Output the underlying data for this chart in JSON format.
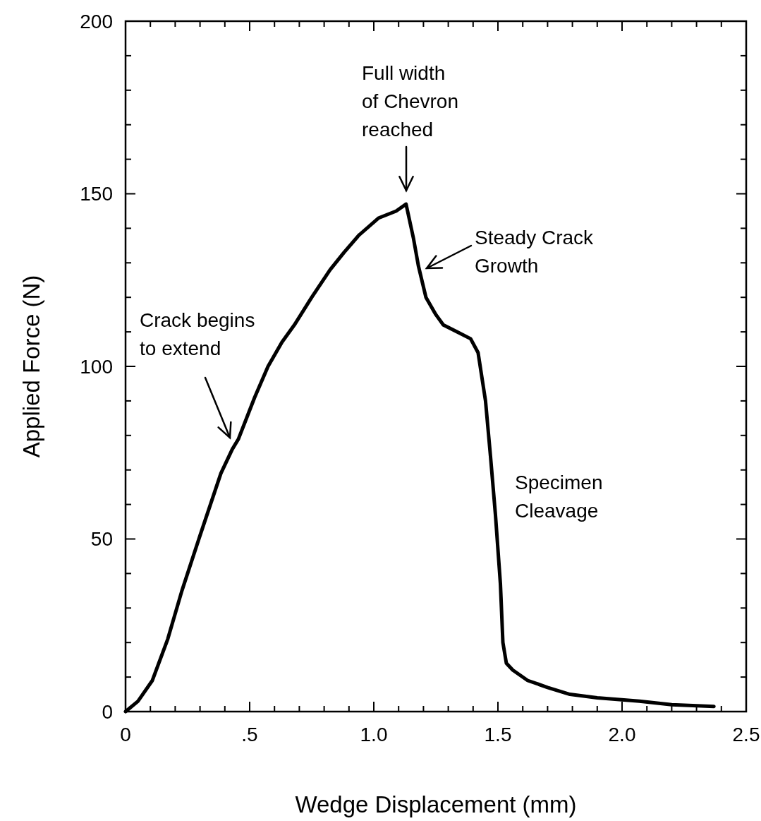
{
  "chart_data": {
    "type": "line",
    "xlabel": "Wedge Displacement (mm)",
    "ylabel": "Applied Force  (N)",
    "xlim": [
      0,
      2.5
    ],
    "ylim": [
      0,
      200
    ],
    "xticks": [
      {
        "value": 0,
        "label": "0"
      },
      {
        "value": 0.1,
        "label": null
      },
      {
        "value": 0.2,
        "label": null
      },
      {
        "value": 0.3,
        "label": null
      },
      {
        "value": 0.4,
        "label": null
      },
      {
        "value": 0.5,
        "label": ".5"
      },
      {
        "value": 0.6,
        "label": null
      },
      {
        "value": 0.7,
        "label": null
      },
      {
        "value": 0.8,
        "label": null
      },
      {
        "value": 0.9,
        "label": null
      },
      {
        "value": 1,
        "label": "1.0"
      },
      {
        "value": 1.1,
        "label": null
      },
      {
        "value": 1.2,
        "label": null
      },
      {
        "value": 1.3,
        "label": null
      },
      {
        "value": 1.4,
        "label": null
      },
      {
        "value": 1.5,
        "label": "1.5"
      },
      {
        "value": 1.6,
        "label": null
      },
      {
        "value": 1.7,
        "label": null
      },
      {
        "value": 1.8,
        "label": null
      },
      {
        "value": 1.9,
        "label": null
      },
      {
        "value": 2,
        "label": "2.0"
      },
      {
        "value": 2.1,
        "label": null
      },
      {
        "value": 2.2,
        "label": null
      },
      {
        "value": 2.3,
        "label": null
      },
      {
        "value": 2.4,
        "label": null
      },
      {
        "value": 2.5,
        "label": "2.5"
      }
    ],
    "yticks": [
      0,
      {
        "value": 10,
        "label": null
      },
      {
        "value": 20,
        "label": null
      },
      {
        "value": 30,
        "label": null
      },
      {
        "value": 40,
        "label": null
      },
      50,
      {
        "value": 60,
        "label": null
      },
      {
        "value": 70,
        "label": null
      },
      {
        "value": 80,
        "label": null
      },
      {
        "value": 90,
        "label": null
      },
      100,
      {
        "value": 110,
        "label": null
      },
      {
        "value": 120,
        "label": null
      },
      {
        "value": 130,
        "label": null
      },
      {
        "value": 140,
        "label": null
      },
      150,
      {
        "value": 160,
        "label": null
      },
      {
        "value": 170,
        "label": null
      },
      {
        "value": 180,
        "label": null
      },
      {
        "value": 190,
        "label": null
      },
      200
    ],
    "grid": false,
    "marker": "none",
    "line_style": "solid",
    "series": [
      {
        "color": "#000000",
        "x": [
          0,
          0.05,
          0.108,
          0.17,
          0.227,
          0.3,
          0.384,
          0.43,
          0.455,
          0.52,
          0.574,
          0.63,
          0.68,
          0.75,
          0.824,
          0.88,
          0.94,
          1.02,
          1.09,
          1.13,
          1.16,
          1.18,
          1.21,
          1.25,
          1.28,
          1.335,
          1.39,
          1.42,
          1.45,
          1.47,
          1.49,
          1.51,
          1.52,
          1.534,
          1.56,
          1.62,
          1.7,
          1.79,
          1.9,
          2.07,
          2.2,
          2.37
        ],
        "values": [
          0,
          3,
          9,
          21,
          35,
          51,
          69,
          76,
          79,
          91,
          100,
          107,
          112,
          120,
          128,
          133,
          138,
          143,
          145,
          147,
          137,
          129,
          120,
          115,
          112,
          110,
          108,
          104,
          90,
          74,
          57,
          37,
          20,
          14,
          12,
          9,
          7,
          5,
          4,
          3,
          2,
          1.5
        ]
      }
    ],
    "annotations": [
      "Crack begins\nto extend",
      "Full width\nof Chevron\nreached",
      "Steady Crack\nGrowth",
      "Specimen\nCleavage"
    ]
  }
}
